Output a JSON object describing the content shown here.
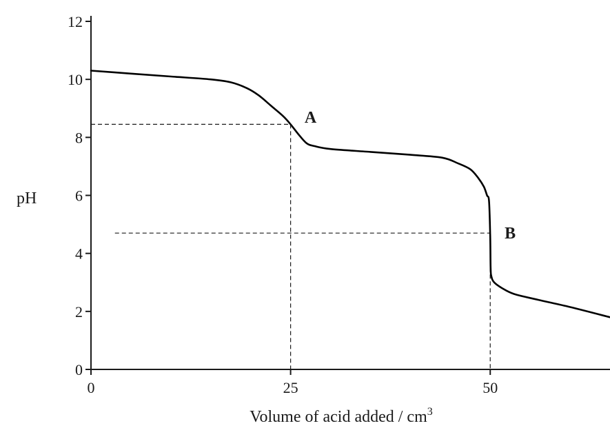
{
  "chart_data": {
    "type": "line",
    "title": "",
    "xlabel": "Volume of acid added / cm",
    "xlabel_superscript": "3",
    "ylabel": "pH",
    "xlim": [
      0,
      65
    ],
    "ylim": [
      0,
      12
    ],
    "x_ticks": [
      0,
      25,
      50
    ],
    "y_ticks": [
      0,
      2,
      4,
      6,
      8,
      10,
      12
    ],
    "x_tick_labels": [
      "0",
      "25",
      "50"
    ],
    "y_tick_labels": [
      "0",
      "2",
      "4",
      "6",
      "8",
      "10",
      "12"
    ],
    "grid": false,
    "series": [
      {
        "x": [
          0,
          5,
          10,
          15,
          17.5,
          19.5,
          21,
          22.5,
          24,
          25,
          26,
          27,
          28,
          30,
          35,
          40,
          44,
          46,
          47.5,
          48.5,
          49.2,
          49.6,
          49.85,
          50,
          50.05,
          50.15,
          50.5,
          51.5,
          53,
          56,
          60,
          65
        ],
        "y": [
          10.3,
          10.2,
          10.1,
          10.0,
          9.9,
          9.7,
          9.45,
          9.1,
          8.75,
          8.45,
          8.1,
          7.8,
          7.7,
          7.6,
          7.5,
          7.4,
          7.3,
          7.1,
          6.9,
          6.6,
          6.3,
          6.0,
          5.8,
          4.6,
          3.5,
          3.2,
          3.0,
          2.8,
          2.6,
          2.4,
          2.15,
          1.8
        ]
      }
    ],
    "guide_lines": [
      {
        "from": [
          0,
          8.45
        ],
        "to": [
          25,
          8.45
        ]
      },
      {
        "from": [
          25,
          8.45
        ],
        "to": [
          25,
          0
        ]
      },
      {
        "from": [
          3,
          4.7
        ],
        "to": [
          50,
          4.7
        ]
      },
      {
        "from": [
          50,
          4.7
        ],
        "to": [
          50,
          0
        ]
      }
    ],
    "annotations": [
      {
        "text": "A",
        "x": 27.5,
        "y": 8.7
      },
      {
        "text": "B",
        "x": 52.5,
        "y": 4.7
      }
    ]
  }
}
